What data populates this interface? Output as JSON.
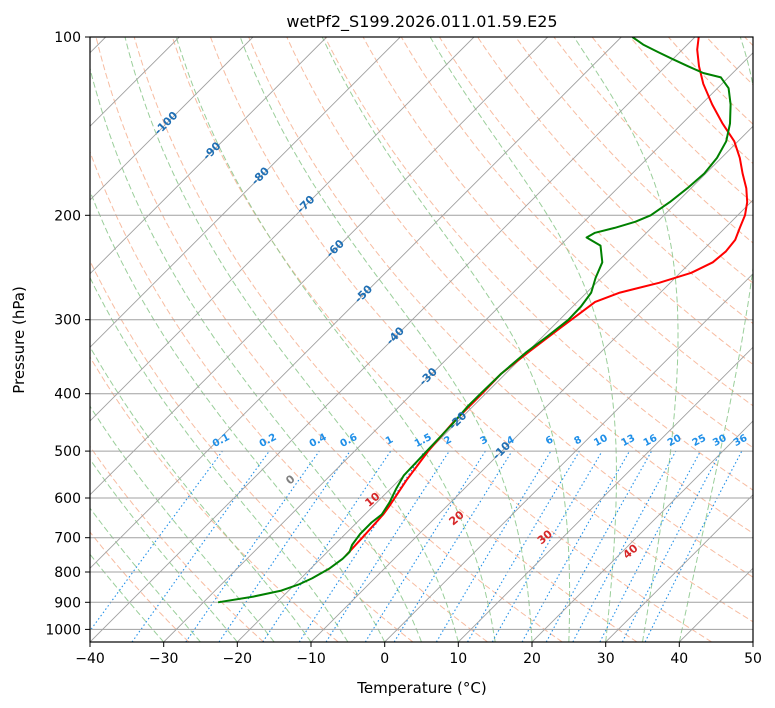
{
  "chart_data": {
    "type": "line",
    "diagram": "skew-T log-P",
    "title": "wetPf2_S199.2026.011.01.59.E25",
    "xlabel": "Temperature (°C)",
    "ylabel": "Pressure (hPa)",
    "xlim": [
      -40,
      50
    ],
    "ylim": [
      1050,
      100
    ],
    "yscale": "log",
    "x_ticks": [
      "−40",
      "−30",
      "−20",
      "−10",
      "0",
      "10",
      "20",
      "30",
      "40",
      "50"
    ],
    "y_ticks": [
      "100",
      "200",
      "300",
      "400",
      "500",
      "600",
      "700",
      "800",
      "900",
      "1000"
    ],
    "grid": true,
    "series": [
      {
        "color": "#ff0000",
        "points": [
          [
            -17.0,
            750
          ],
          [
            -17.2,
            700
          ],
          [
            -17.5,
            640
          ],
          [
            -17.8,
            620
          ],
          [
            -19.0,
            560
          ],
          [
            -20.0,
            500
          ],
          [
            -20.5,
            450
          ],
          [
            -20.5,
            400
          ],
          [
            -20.6,
            370
          ],
          [
            -19.8,
            340
          ],
          [
            -18.8,
            310
          ],
          [
            -18.0,
            290
          ],
          [
            -17.6,
            280
          ],
          [
            -15.5,
            270
          ],
          [
            -11.5,
            260
          ],
          [
            -8.5,
            250
          ],
          [
            -7.0,
            240
          ],
          [
            -6.7,
            230
          ],
          [
            -7.0,
            220
          ],
          [
            -8.0,
            210
          ],
          [
            -9.0,
            200
          ],
          [
            -10.5,
            190
          ],
          [
            -12.5,
            180
          ],
          [
            -15.0,
            170
          ],
          [
            -17.5,
            160
          ],
          [
            -20.5,
            150
          ],
          [
            -24.5,
            140
          ],
          [
            -28.5,
            130
          ],
          [
            -32.5,
            120
          ],
          [
            -35.5,
            112
          ],
          [
            -38.0,
            105
          ],
          [
            -39.5,
            100
          ]
        ]
      },
      {
        "color": "#008000",
        "points": [
          [
            -28.0,
            900
          ],
          [
            -24.0,
            880
          ],
          [
            -21.0,
            860
          ],
          [
            -19.5,
            840
          ],
          [
            -18.5,
            820
          ],
          [
            -17.5,
            790
          ],
          [
            -17.0,
            760
          ],
          [
            -17.0,
            740
          ],
          [
            -17.6,
            720
          ],
          [
            -18.0,
            690
          ],
          [
            -18.0,
            660
          ],
          [
            -17.7,
            640
          ],
          [
            -18.3,
            610
          ],
          [
            -19.2,
            580
          ],
          [
            -20.0,
            550
          ],
          [
            -20.2,
            500
          ],
          [
            -20.4,
            450
          ],
          [
            -20.7,
            420
          ],
          [
            -20.7,
            400
          ],
          [
            -20.6,
            370
          ],
          [
            -20.1,
            340
          ],
          [
            -19.4,
            320
          ],
          [
            -18.8,
            300
          ],
          [
            -18.9,
            285
          ],
          [
            -19.4,
            270
          ],
          [
            -20.8,
            255
          ],
          [
            -22.0,
            240
          ],
          [
            -24.5,
            225
          ],
          [
            -27.5,
            218
          ],
          [
            -27.0,
            214
          ],
          [
            -25.0,
            210
          ],
          [
            -23.0,
            205
          ],
          [
            -21.8,
            200
          ],
          [
            -21.0,
            190
          ],
          [
            -20.5,
            180
          ],
          [
            -20.2,
            170
          ],
          [
            -20.6,
            160
          ],
          [
            -21.6,
            150
          ],
          [
            -23.5,
            140
          ],
          [
            -26.0,
            130
          ],
          [
            -28.5,
            122
          ],
          [
            -31.0,
            117
          ],
          [
            -34.0,
            115
          ],
          [
            -37.0,
            112
          ],
          [
            -40.0,
            109
          ],
          [
            -43.0,
            106
          ],
          [
            -46.0,
            103
          ],
          [
            -48.5,
            100
          ]
        ]
      }
    ],
    "mixing_ratio_lines": {
      "color": "#1f8fe8",
      "values": [
        0.1,
        0.2,
        0.4,
        0.6,
        1,
        1.5,
        2,
        3,
        4,
        6,
        8,
        10,
        13,
        16,
        20,
        25,
        30,
        36
      ],
      "labels": [
        "0.1",
        "0.2",
        "0.4",
        "0.6",
        "1",
        "1.5",
        "2",
        "3",
        "4",
        "6",
        "8",
        "10",
        "13",
        "16",
        "20",
        "25",
        "30",
        "36"
      ]
    },
    "dry_adiabats": {
      "color": "#f4a582",
      "labels": [
        "0",
        "10",
        "20",
        "30",
        "40"
      ],
      "label_colors": [
        "#808080",
        "#d62728",
        "#d62728",
        "#d62728",
        "#d62728"
      ]
    },
    "moist_adiabats": {
      "color": "#8fc98f"
    },
    "isotherm_labels": {
      "color": "#1f6fb4",
      "labels": [
        "-100",
        "-90",
        "-80",
        "-70",
        "-60",
        "-50",
        "-40",
        "-30",
        "-20",
        "-10"
      ]
    }
  }
}
